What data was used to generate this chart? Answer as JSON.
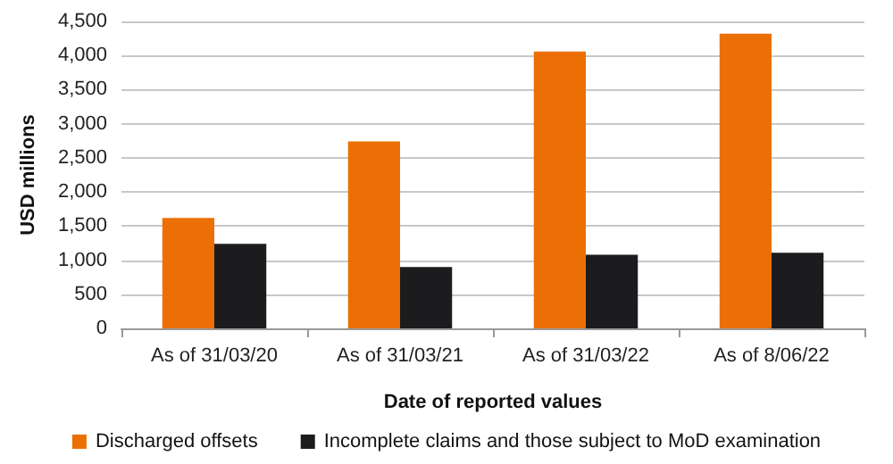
{
  "chart_data": {
    "type": "bar",
    "xlabel": "Date of reported values",
    "ylabel": "USD millions",
    "categories": [
      "As of 31/03/20",
      "As of 31/03/21",
      "As of 31/03/22",
      "As of 8/06/22"
    ],
    "series": [
      {
        "name": "Discharged offsets",
        "color": "#ec6f05",
        "values": [
          1620,
          2740,
          4060,
          4320
        ]
      },
      {
        "name": "Incomplete claims and those subject to MoD examination",
        "color": "#1c1c1e",
        "values": [
          1240,
          900,
          1080,
          1110
        ]
      }
    ],
    "ylim": [
      0,
      4500
    ],
    "yticks": [
      0,
      500,
      {
        "value": 1000,
        "label": "1,000"
      },
      {
        "value": 1500,
        "label": "1,500"
      },
      {
        "value": 2000,
        "label": "2,000"
      },
      {
        "value": 2500,
        "label": "2,500"
      },
      {
        "value": 3000,
        "label": "3,000"
      },
      {
        "value": 3500,
        "label": "3,500"
      },
      {
        "value": 4000,
        "label": "4,000"
      },
      {
        "value": 4500,
        "label": "4,500"
      }
    ],
    "grid": "y",
    "legend": "bottom"
  }
}
